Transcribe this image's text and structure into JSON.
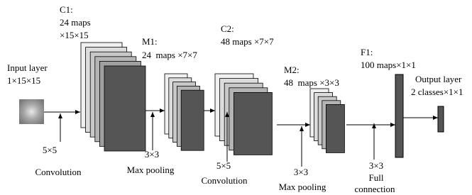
{
  "layers": [
    {
      "label": [
        "Input layer",
        "1×15×15"
      ]
    },
    {
      "label": [
        "C1:",
        "24 maps",
        "×15×15"
      ]
    },
    {
      "label": [
        "M1:",
        "24  maps ×7×7"
      ]
    },
    {
      "label": [
        "C2:",
        "48 maps ×7×7"
      ]
    },
    {
      "label": [
        "M2:",
        "48  maps ×3×3"
      ]
    },
    {
      "label": [
        "F1:",
        "100 maps×1×1"
      ]
    },
    {
      "label": [
        "Output layer",
        "2 classes×1×1"
      ]
    }
  ],
  "operations": [
    {
      "label": [
        "5×5",
        "Convolution"
      ]
    },
    {
      "label": [
        "3×3",
        "Max pooling"
      ]
    },
    {
      "label": [
        "5×5",
        "Convolution"
      ]
    },
    {
      "label": [
        "3×3",
        "Max pooling"
      ]
    },
    {
      "label": [
        "3×3",
        "Full",
        "connection"
      ]
    }
  ]
}
